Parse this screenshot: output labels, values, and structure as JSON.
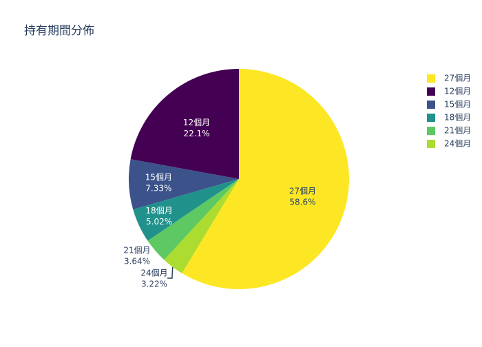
{
  "chart_data": {
    "type": "pie",
    "title": "持有期間分佈",
    "categories": [
      "27個月",
      "12個月",
      "15個月",
      "18個月",
      "21個月",
      "24個月"
    ],
    "values": [
      58.6,
      22.1,
      7.33,
      5.02,
      3.64,
      3.22
    ],
    "value_labels": [
      "58.6%",
      "22.1%",
      "7.33%",
      "5.02%",
      "3.64%",
      "3.22%"
    ],
    "colors": [
      "#fde725",
      "#440154",
      "#3b528b",
      "#21918c",
      "#5ec962",
      "#addc30"
    ]
  }
}
